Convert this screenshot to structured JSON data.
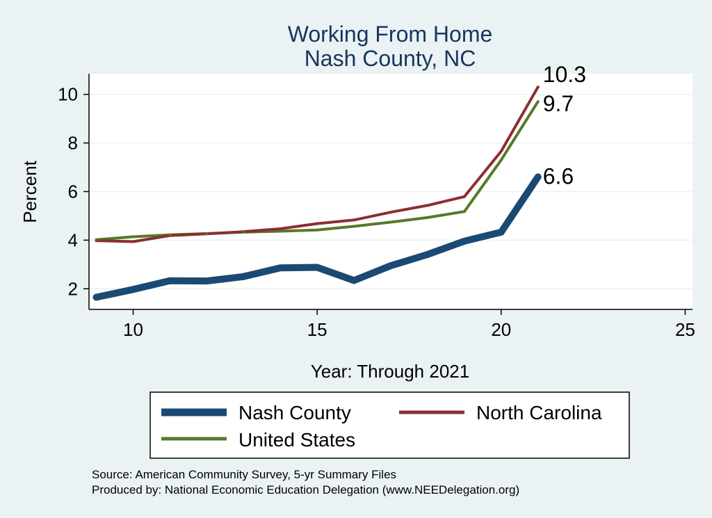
{
  "chart_data": {
    "type": "line",
    "title_lines": [
      "Working From Home",
      "Nash County, NC"
    ],
    "xlabel": "Year: Through 2021",
    "ylabel": "Percent",
    "xlim": [
      8.8,
      25.2
    ],
    "ylim": [
      1.15,
      10.85
    ],
    "xticks": [
      10,
      15,
      20,
      25
    ],
    "yticks": [
      2,
      4,
      6,
      8,
      10
    ],
    "x": [
      9,
      10,
      11,
      12,
      13,
      14,
      15,
      16,
      17,
      18,
      19,
      20,
      21
    ],
    "series": [
      {
        "name": "Nash County",
        "color": "#1a4a73",
        "weight": "thick",
        "values": [
          1.65,
          1.97,
          2.33,
          2.32,
          2.5,
          2.86,
          2.88,
          2.34,
          2.95,
          3.41,
          3.96,
          4.33,
          6.6
        ],
        "end_label": "6.6"
      },
      {
        "name": "North Carolina",
        "color": "#8c2d32",
        "weight": "thin",
        "values": [
          3.98,
          3.94,
          4.19,
          4.26,
          4.35,
          4.47,
          4.68,
          4.83,
          5.15,
          5.43,
          5.79,
          7.66,
          10.3
        ],
        "end_label": "10.3"
      },
      {
        "name": "United States",
        "color": "#557a2a",
        "weight": "thin",
        "values": [
          4.02,
          4.14,
          4.22,
          4.27,
          4.33,
          4.37,
          4.42,
          4.57,
          4.74,
          4.93,
          5.18,
          7.3,
          9.7
        ],
        "end_label": "9.7"
      }
    ],
    "legend": {
      "placement": "bottom",
      "order": [
        "Nash County",
        "North Carolina",
        "United States"
      ]
    },
    "notes": [
      "Source: American Community Survey, 5-yr Summary Files",
      "Produced by: National Economic Education Delegation (www.NEEDelegation.org)"
    ]
  }
}
